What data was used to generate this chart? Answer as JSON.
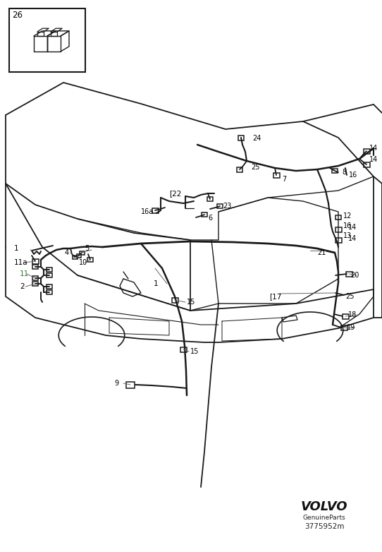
{
  "bg_color": "#ffffff",
  "line_color": "#1a1a1a",
  "label_color": "#000000",
  "green_color": "#2d7a2d",
  "fig_width": 5.42,
  "fig_height": 7.82,
  "dpi": 100,
  "volvo_text": "VOLVO",
  "genuine_text": "GenuineParts",
  "part_number": "3775952m",
  "title_box_label": "26"
}
